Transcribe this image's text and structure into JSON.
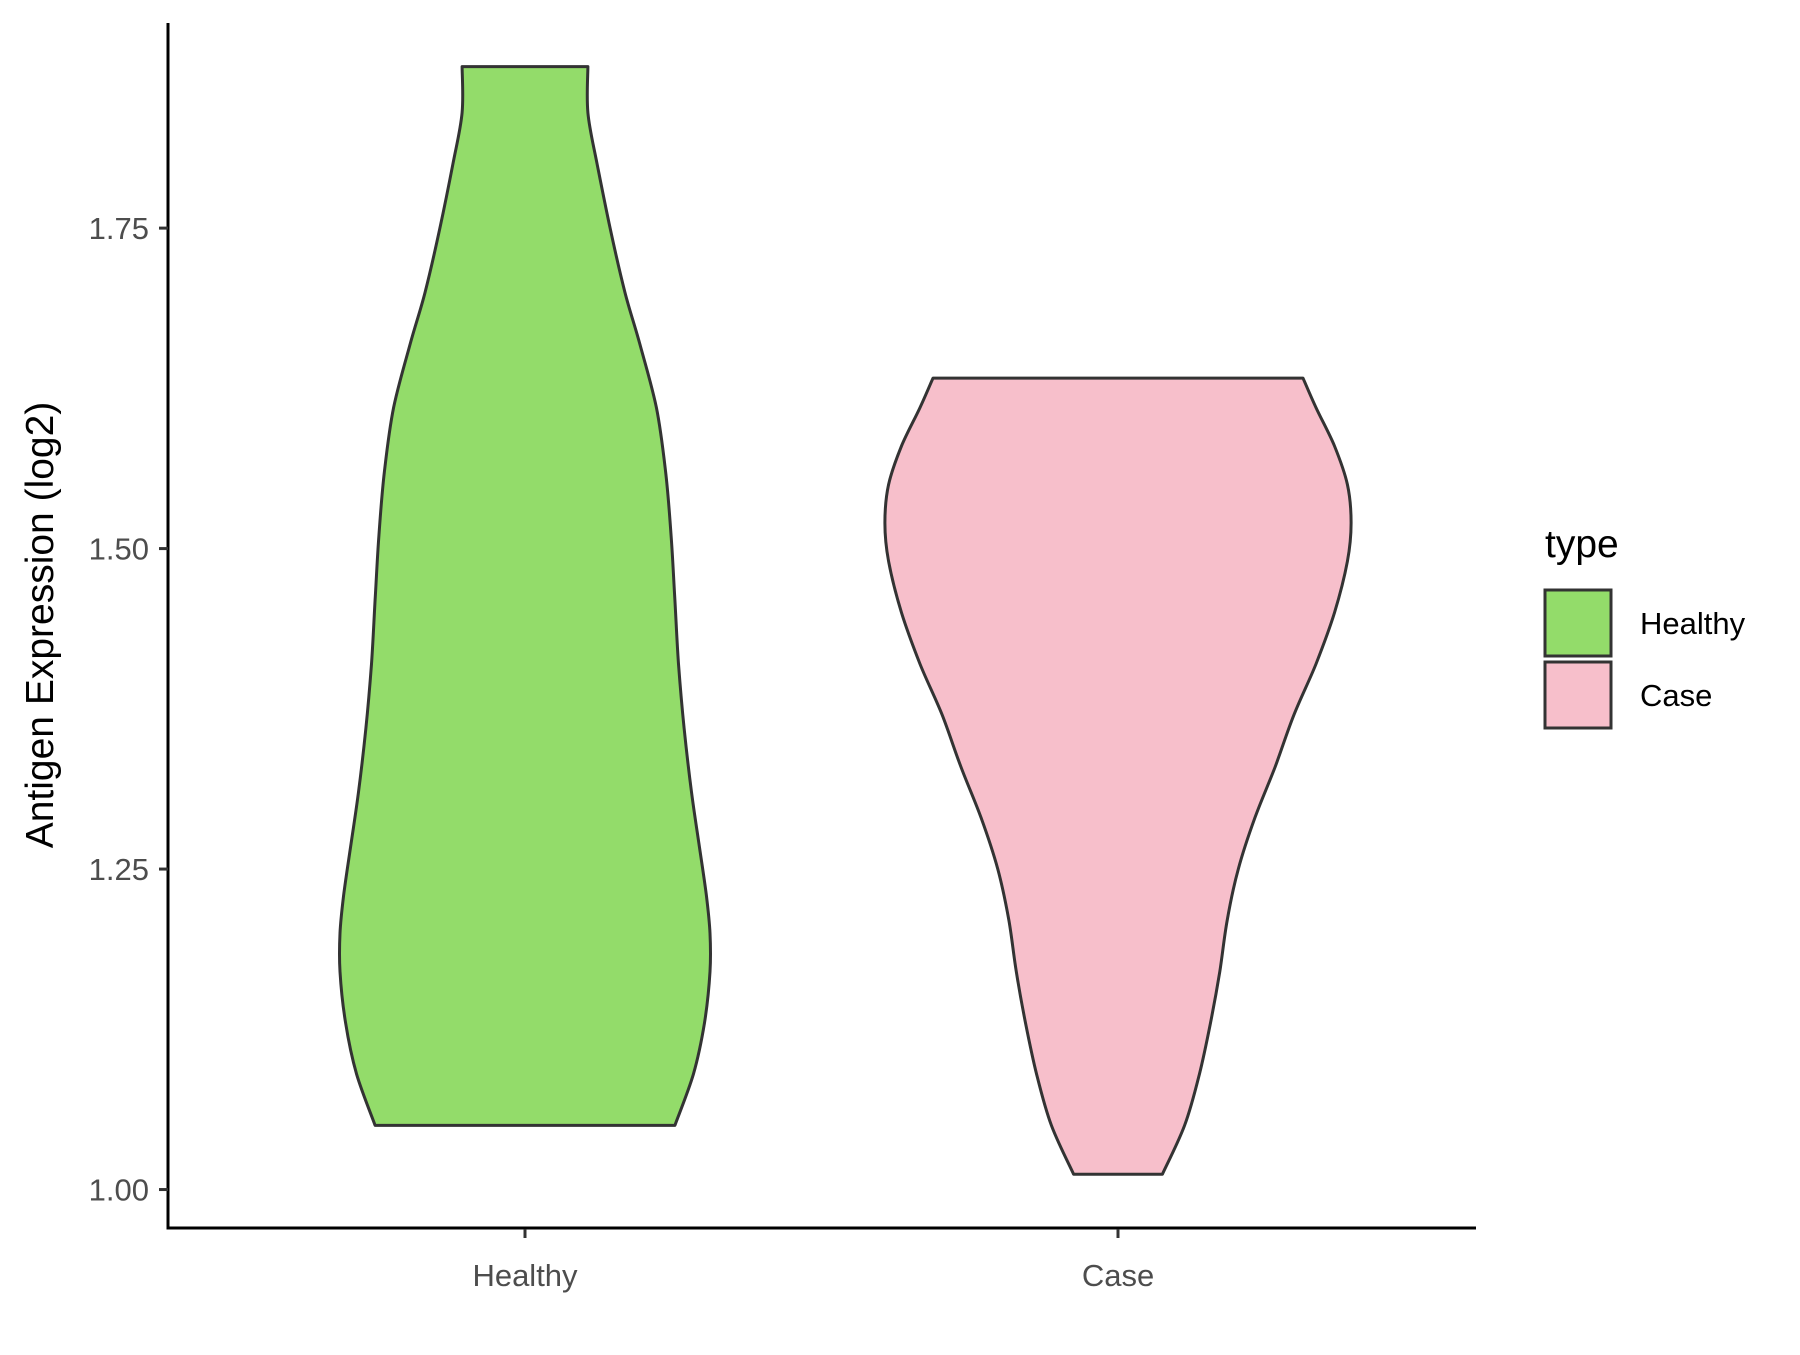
{
  "chart_data": {
    "type": "violin",
    "title": "",
    "xlabel": "",
    "ylabel": "Antigen Expression (log2)",
    "ylim": [
      0.97,
      1.91
    ],
    "yticks": [
      "1.00",
      "1.25",
      "1.50",
      "1.75"
    ],
    "grid": false,
    "legend": {
      "title": "type",
      "position": "right",
      "entries": [
        {
          "label": "Healthy",
          "color": "#93DC6A"
        },
        {
          "label": "Case",
          "color": "#F7BFCB"
        }
      ]
    },
    "categories": [
      "Healthy",
      "Case"
    ],
    "series": [
      {
        "category": "Healthy",
        "color": "#93DC6A",
        "min": 1.05,
        "max": 1.876,
        "density_profile": [
          [
            1.05,
            0.81
          ],
          [
            1.09,
            0.91
          ],
          [
            1.13,
            0.97
          ],
          [
            1.17,
            1.0
          ],
          [
            1.2,
            1.0
          ],
          [
            1.23,
            0.98
          ],
          [
            1.27,
            0.94
          ],
          [
            1.31,
            0.9
          ],
          [
            1.36,
            0.86
          ],
          [
            1.41,
            0.83
          ],
          [
            1.46,
            0.81
          ],
          [
            1.51,
            0.79
          ],
          [
            1.56,
            0.76
          ],
          [
            1.61,
            0.71
          ],
          [
            1.66,
            0.62
          ],
          [
            1.7,
            0.54
          ],
          [
            1.75,
            0.46
          ],
          [
            1.8,
            0.39
          ],
          [
            1.84,
            0.34
          ],
          [
            1.876,
            0.34
          ]
        ]
      },
      {
        "category": "Case",
        "color": "#F7BFCB",
        "min": 1.012,
        "max": 1.633,
        "density_profile": [
          [
            1.012,
            0.24
          ],
          [
            1.05,
            0.36
          ],
          [
            1.09,
            0.44
          ],
          [
            1.13,
            0.5
          ],
          [
            1.17,
            0.55
          ],
          [
            1.21,
            0.59
          ],
          [
            1.25,
            0.65
          ],
          [
            1.29,
            0.74
          ],
          [
            1.33,
            0.85
          ],
          [
            1.37,
            0.95
          ],
          [
            1.41,
            1.07
          ],
          [
            1.45,
            1.17
          ],
          [
            1.49,
            1.24
          ],
          [
            1.52,
            1.26
          ],
          [
            1.55,
            1.24
          ],
          [
            1.58,
            1.17
          ],
          [
            1.61,
            1.07
          ],
          [
            1.633,
            1.0
          ]
        ]
      }
    ]
  }
}
